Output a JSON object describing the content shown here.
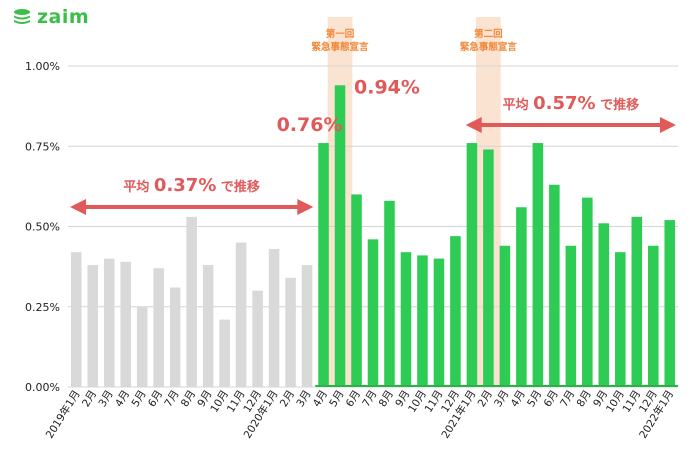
{
  "brand": {
    "name": "zaim",
    "icon": "coin-stack-icon"
  },
  "colors": {
    "gray_bar": "#d9d9d9",
    "green_bar": "#2ecc54",
    "green_bg": "#28b347",
    "emergency_band": "#fbe3d2",
    "annotation_red": "#e05a5a",
    "band_label": "#f08a3c",
    "grid": "#d4d4d4",
    "brand_green": "#3cbf4a"
  },
  "chart_data": {
    "type": "bar",
    "categories": [
      "2019年1月",
      "2月",
      "3月",
      "4月",
      "5月",
      "6月",
      "7月",
      "8月",
      "9月",
      "10月",
      "11月",
      "12月",
      "2020年1月",
      "2月",
      "3月",
      "4月",
      "5月",
      "6月",
      "7月",
      "8月",
      "9月",
      "10月",
      "11月",
      "12月",
      "2021年1月",
      "2月",
      "3月",
      "4月",
      "5月",
      "6月",
      "7月",
      "8月",
      "9月",
      "10月",
      "11月",
      "12月",
      "2022年1月"
    ],
    "values": [
      0.42,
      0.38,
      0.4,
      0.39,
      0.25,
      0.37,
      0.31,
      0.53,
      0.38,
      0.21,
      0.45,
      0.3,
      0.43,
      0.34,
      0.38,
      0.76,
      0.94,
      0.6,
      0.46,
      0.58,
      0.42,
      0.41,
      0.4,
      0.47,
      0.76,
      0.74,
      0.44,
      0.56,
      0.76,
      0.63,
      0.44,
      0.59,
      0.51,
      0.42,
      0.53,
      0.44,
      0.52
    ],
    "highlight_from_index": 15,
    "ylim": [
      0,
      1.0
    ],
    "yticks": [
      "0.00%",
      "0.25%",
      "0.50%",
      "0.75%",
      "1.00%"
    ],
    "grid": true,
    "emergency_periods": [
      {
        "index": 16,
        "label_lines": [
          "第一回",
          "緊急事態宣言"
        ]
      },
      {
        "index": 25,
        "label_lines": [
          "第二回",
          "緊急事態宣言"
        ]
      }
    ],
    "callouts": [
      {
        "index": 15,
        "text": "0.76%"
      },
      {
        "index": 16,
        "text": "0.94%"
      }
    ],
    "averages": [
      {
        "from_index": 0,
        "to_index": 14,
        "prefix": "平均",
        "value": "0.37%",
        "suffix": "で推移"
      },
      {
        "from_index": 24,
        "to_index": 36,
        "prefix": "平均",
        "value": "0.57%",
        "suffix": "で推移"
      }
    ]
  }
}
